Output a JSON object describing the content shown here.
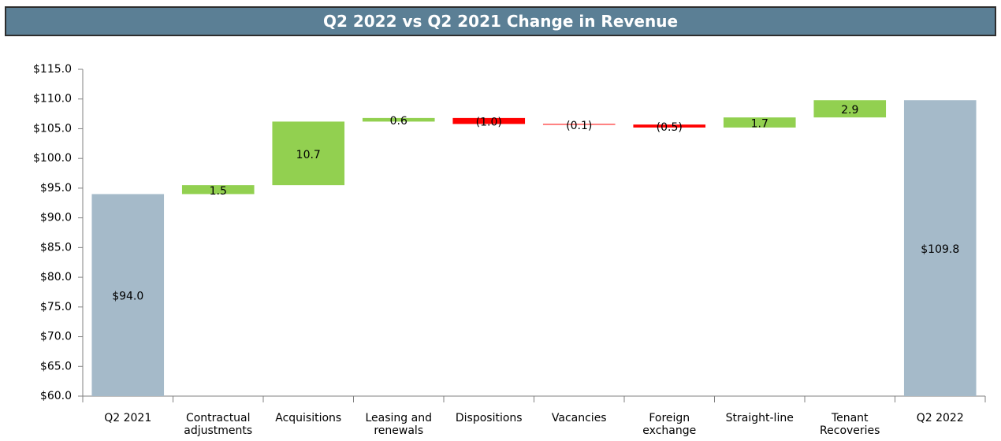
{
  "chart_data": {
    "type": "waterfall",
    "title": "Q2 2022 vs Q2 2021 Change in Revenue",
    "categories": [
      "Q2 2021",
      "Contractual adjustments",
      "Acquisitions",
      "Leasing and renewals",
      "Dispositions",
      "Vacancies",
      "Foreign exchange",
      "Straight-line",
      "Tenant Recoveries",
      "Q2 2022"
    ],
    "measure": [
      "absolute",
      "relative",
      "relative",
      "relative",
      "relative",
      "relative",
      "relative",
      "relative",
      "relative",
      "total"
    ],
    "values": [
      94.0,
      1.5,
      10.7,
      0.6,
      -1.0,
      -0.1,
      -0.5,
      1.7,
      2.9,
      109.8
    ],
    "value_labels": [
      "$94.0",
      "1.5",
      "10.7",
      "0.6",
      "(1.0)",
      "(0.1)",
      "(0.5)",
      "1.7",
      "2.9",
      "$109.8"
    ],
    "colors": {
      "total": "#a5bac9",
      "increase": "#92d050",
      "decrease": "#ff0000"
    },
    "ylim": [
      60,
      115
    ],
    "yticks": [
      {
        "value": 60,
        "label": "$60.0"
      },
      {
        "value": 65,
        "label": "$65.0"
      },
      {
        "value": 70,
        "label": "$70.0"
      },
      {
        "value": 75,
        "label": "$75.0"
      },
      {
        "value": 80,
        "label": "$80.0"
      },
      {
        "value": 85,
        "label": "$85.0"
      },
      {
        "value": 90,
        "label": "$90.0"
      },
      {
        "value": 95,
        "label": "$95.0"
      },
      {
        "value": 100,
        "label": "$100.0"
      },
      {
        "value": 105,
        "label": "$105.0"
      },
      {
        "value": 110,
        "label": "$110.0"
      },
      {
        "value": 115,
        "label": "$115.0"
      }
    ],
    "grid": false
  }
}
